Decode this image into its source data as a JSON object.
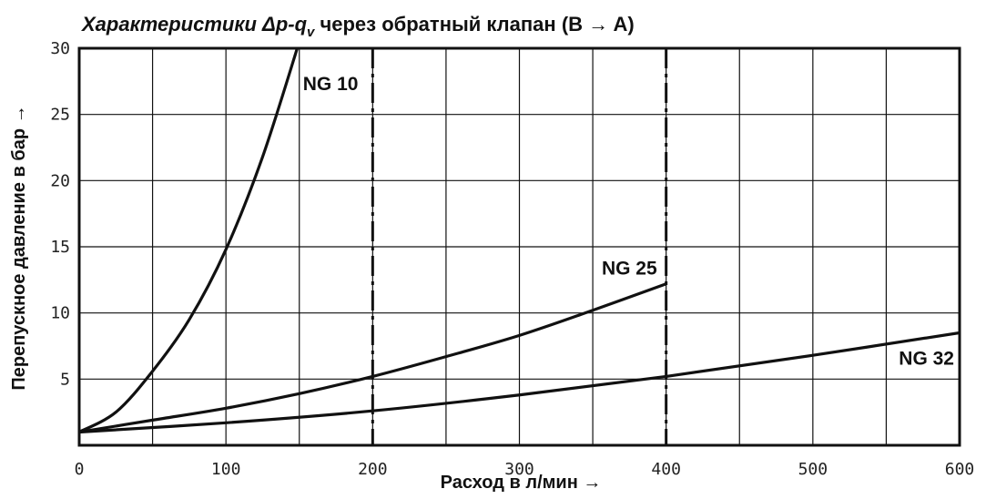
{
  "chart_data": {
    "type": "line",
    "title": {
      "italic_part": "Характеристики Δp-q",
      "subscript": "v",
      "rest": " через обратный клапан (B → A)"
    },
    "xlabel": "Расход в л/мин →",
    "ylabel": "Перепускное давление в бар →",
    "xlim": [
      0,
      600
    ],
    "ylim": [
      0,
      30
    ],
    "x_ticks": [
      0,
      100,
      200,
      300,
      400,
      500,
      600
    ],
    "y_ticks": [
      5,
      10,
      15,
      20,
      25,
      30
    ],
    "x_grid_step": 50,
    "y_grid_step": 5,
    "grid": true,
    "series": [
      {
        "name": "NG 10",
        "x": [
          0,
          25,
          50,
          75,
          100,
          125,
          150
        ],
        "y": [
          1.0,
          2.5,
          5.6,
          9.5,
          14.8,
          21.8,
          30.5
        ]
      },
      {
        "name": "NG 25",
        "x": [
          0,
          50,
          100,
          150,
          200,
          250,
          300,
          350,
          400
        ],
        "y": [
          1.0,
          1.9,
          2.8,
          3.9,
          5.2,
          6.7,
          8.3,
          10.2,
          12.2
        ]
      },
      {
        "name": "NG 32",
        "x": [
          0,
          100,
          200,
          300,
          400,
          500,
          600
        ],
        "y": [
          1.0,
          1.7,
          2.6,
          3.8,
          5.2,
          6.8,
          8.5
        ]
      }
    ],
    "vertical_limit_lines_x": [
      200,
      400
    ],
    "series_label_positions": {
      "NG 10": "right of curve near top",
      "NG 25": "above curve end",
      "NG 32": "below curve near right edge"
    }
  }
}
